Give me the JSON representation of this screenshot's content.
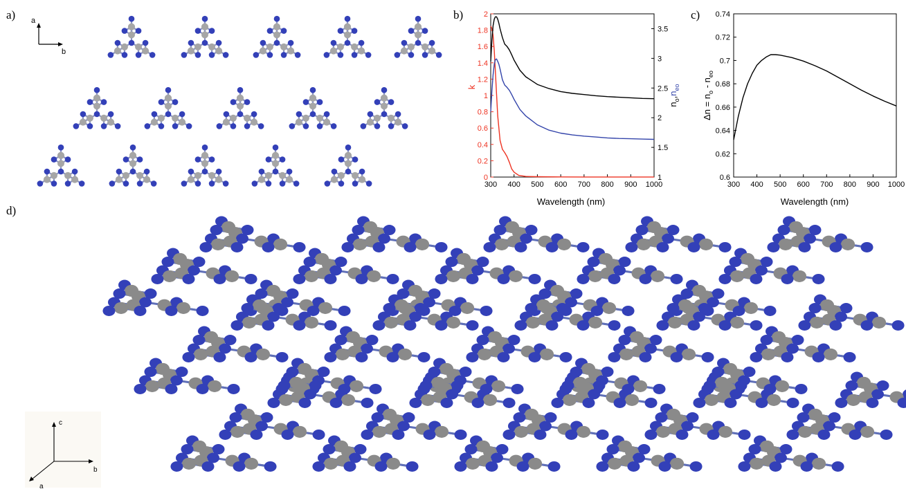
{
  "panels": {
    "a": "a)",
    "b": "b)",
    "c": "c)",
    "d": "d)"
  },
  "axes_a": {
    "a": "a",
    "b": "b"
  },
  "axes_d": {
    "a": "a",
    "b": "b",
    "c": "c"
  },
  "colors": {
    "nitrogen": "#3340b8",
    "carbon": "#a6a6a6",
    "k_curve": "#ee3322",
    "n_o_curve": "#000000",
    "n_eo_curve": "#3344aa"
  },
  "chart_data": [
    {
      "type": "line",
      "panel": "b",
      "xlabel": "Wavelength (nm)",
      "ylabel_left": "k",
      "ylabel_right_parts": [
        "n",
        "o",
        ",",
        "n",
        "eo"
      ],
      "xlim": [
        300,
        1000
      ],
      "xticks": [
        "300",
        "400",
        "500",
        "600",
        "700",
        "800",
        "900",
        "1000"
      ],
      "ylim_left": [
        0,
        2
      ],
      "yticks_left": [
        "0",
        "0.2",
        "0.4",
        "0.6",
        "0.8",
        "1",
        "1.2",
        "1.4",
        "1.6",
        "1.8",
        "2"
      ],
      "ylim_right": [
        1,
        3.75
      ],
      "yticks_right": [
        "1",
        "1.5",
        "2",
        "2.5",
        "3",
        "3.5"
      ],
      "series": [
        {
          "axis": "left",
          "color": "#ee3322",
          "x": [
            300,
            305,
            310,
            315,
            320,
            325,
            330,
            340,
            350,
            360,
            370,
            380,
            390,
            400,
            420,
            450,
            500,
            600,
            700,
            800,
            900,
            1000
          ],
          "y": [
            1.85,
            1.82,
            1.74,
            1.55,
            1.3,
            1.02,
            0.75,
            0.45,
            0.34,
            0.3,
            0.25,
            0.18,
            0.1,
            0.06,
            0.02,
            0.008,
            0.004,
            0.002,
            0.001,
            0.001,
            0.001,
            0.001
          ]
        },
        {
          "axis": "right",
          "color": "#000000",
          "x": [
            300,
            305,
            310,
            315,
            320,
            325,
            330,
            335,
            340,
            350,
            360,
            370,
            380,
            390,
            400,
            425,
            450,
            500,
            550,
            600,
            650,
            700,
            750,
            800,
            850,
            900,
            950,
            1000
          ],
          "y": [
            2.95,
            3.3,
            3.55,
            3.66,
            3.7,
            3.7,
            3.66,
            3.59,
            3.5,
            3.35,
            3.24,
            3.2,
            3.14,
            3.06,
            2.97,
            2.8,
            2.69,
            2.56,
            2.49,
            2.44,
            2.41,
            2.39,
            2.37,
            2.355,
            2.345,
            2.335,
            2.325,
            2.32
          ]
        },
        {
          "axis": "right",
          "color": "#3344aa",
          "x": [
            300,
            305,
            310,
            315,
            320,
            325,
            330,
            335,
            340,
            350,
            360,
            370,
            380,
            390,
            400,
            425,
            450,
            500,
            550,
            600,
            650,
            700,
            750,
            800,
            850,
            900,
            950,
            1000
          ],
          "y": [
            2.1,
            2.45,
            2.72,
            2.9,
            2.98,
            2.99,
            2.95,
            2.9,
            2.82,
            2.64,
            2.55,
            2.51,
            2.46,
            2.39,
            2.31,
            2.14,
            2.03,
            1.88,
            1.79,
            1.74,
            1.71,
            1.69,
            1.675,
            1.66,
            1.65,
            1.645,
            1.64,
            1.635
          ]
        }
      ]
    },
    {
      "type": "line",
      "panel": "c",
      "xlabel": "Wavelength (nm)",
      "ylabel": "Δn = n_o - n_eo",
      "ylabel_parts": [
        "Δn = n",
        "o",
        " - n",
        "eo"
      ],
      "xlim": [
        300,
        1000
      ],
      "xticks": [
        "300",
        "400",
        "500",
        "600",
        "700",
        "800",
        "900",
        "1000"
      ],
      "ylim": [
        0.6,
        0.74
      ],
      "yticks": [
        "0.6",
        "0.62",
        "0.64",
        "0.66",
        "0.68",
        "0.7",
        "0.72",
        "0.74"
      ],
      "series": [
        {
          "color": "#000000",
          "x": [
            300,
            320,
            340,
            360,
            380,
            400,
            420,
            440,
            460,
            480,
            500,
            550,
            600,
            650,
            700,
            750,
            800,
            850,
            900,
            950,
            1000
          ],
          "y": [
            0.632,
            0.652,
            0.668,
            0.68,
            0.689,
            0.696,
            0.7,
            0.703,
            0.705,
            0.705,
            0.7046,
            0.7025,
            0.6995,
            0.6955,
            0.691,
            0.6855,
            0.68,
            0.6745,
            0.6695,
            0.665,
            0.661
          ]
        }
      ]
    }
  ]
}
